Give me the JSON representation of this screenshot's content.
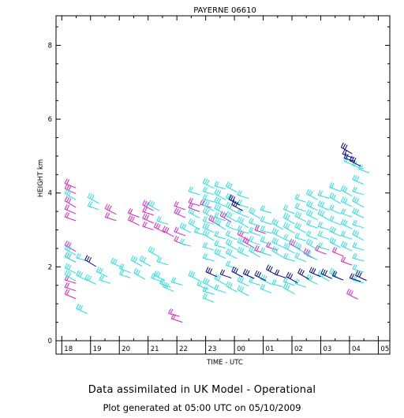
{
  "chart_data": {
    "type": "scatter",
    "title": "PAYERNE 06610",
    "xlabel": "TIME - UTC",
    "ylabel": "HEIGHT km",
    "x_tick_labels": [
      "18",
      "19",
      "20",
      "21",
      "22",
      "23",
      "00",
      "01",
      "02",
      "03",
      "04",
      "05"
    ],
    "y_ticks": [
      0,
      2,
      4,
      6,
      8
    ],
    "ylim": [
      0,
      8.8
    ],
    "xlim": [
      17.8,
      29.4
    ],
    "grid": false,
    "colors": {
      "magenta": "#e020c0",
      "cyan": "#20e0e0",
      "navy": "#000080"
    },
    "series": [
      {
        "color": "magenta",
        "points": [
          [
            18.3,
            4.2
          ],
          [
            18.3,
            4.05
          ],
          [
            18.3,
            3.7
          ],
          [
            18.3,
            3.5
          ],
          [
            18.3,
            3.3
          ],
          [
            18.3,
            2.5
          ],
          [
            18.3,
            2.2
          ],
          [
            18.3,
            1.6
          ],
          [
            18.3,
            1.4
          ],
          [
            18.3,
            1.2
          ],
          [
            19.7,
            3.5
          ],
          [
            19.7,
            3.3
          ],
          [
            20.5,
            3.4
          ],
          [
            20.5,
            3.2
          ],
          [
            21.0,
            3.6
          ],
          [
            21.0,
            3.45
          ],
          [
            21.0,
            3.25
          ],
          [
            21.0,
            3.05
          ],
          [
            21.4,
            3.0
          ],
          [
            21.7,
            2.9
          ],
          [
            22.1,
            3.6
          ],
          [
            22.1,
            3.4
          ],
          [
            22.1,
            2.9
          ],
          [
            22.1,
            2.65
          ],
          [
            21.9,
            0.7
          ],
          [
            22.0,
            0.55
          ],
          [
            22.6,
            3.7
          ],
          [
            22.6,
            3.55
          ],
          [
            23.0,
            3.65
          ],
          [
            23.3,
            3.2
          ],
          [
            23.7,
            3.3
          ],
          [
            24.3,
            2.8
          ],
          [
            24.9,
            2.95
          ],
          [
            24.5,
            2.6
          ],
          [
            24.9,
            2.4
          ],
          [
            25.3,
            2.5
          ],
          [
            26.1,
            2.55
          ],
          [
            26.6,
            2.3
          ],
          [
            27.0,
            2.4
          ],
          [
            27.6,
            2.35
          ],
          [
            27.9,
            2.1
          ],
          [
            28.1,
            1.2
          ]
        ]
      },
      {
        "color": "cyan",
        "points": [
          [
            18.3,
            3.9
          ],
          [
            18.3,
            2.4
          ],
          [
            18.3,
            2.2
          ],
          [
            18.3,
            1.9
          ],
          [
            18.3,
            1.7
          ],
          [
            18.7,
            2.2
          ],
          [
            18.7,
            1.7
          ],
          [
            19.0,
            1.6
          ],
          [
            18.7,
            0.8
          ],
          [
            19.1,
            3.8
          ],
          [
            19.1,
            3.6
          ],
          [
            19.4,
            1.8
          ],
          [
            19.5,
            1.6
          ],
          [
            19.9,
            2.05
          ],
          [
            20.2,
            1.9
          ],
          [
            20.2,
            1.75
          ],
          [
            20.6,
            2.1
          ],
          [
            20.9,
            2.1
          ],
          [
            20.7,
            1.75
          ],
          [
            21.2,
            3.6
          ],
          [
            21.5,
            3.2
          ],
          [
            21.2,
            2.35
          ],
          [
            21.5,
            2.1
          ],
          [
            21.4,
            1.7
          ],
          [
            21.6,
            1.5
          ],
          [
            21.3,
            1.65
          ],
          [
            21.7,
            1.4
          ],
          [
            22.0,
            1.55
          ],
          [
            22.3,
            3.0
          ],
          [
            22.3,
            2.6
          ],
          [
            22.6,
            4.0
          ],
          [
            22.6,
            3.4
          ],
          [
            22.6,
            3.1
          ],
          [
            22.8,
            2.9
          ],
          [
            22.6,
            1.7
          ],
          [
            22.9,
            1.45
          ],
          [
            23.1,
            4.2
          ],
          [
            23.1,
            4.0
          ],
          [
            23.1,
            3.8
          ],
          [
            23.1,
            3.6
          ],
          [
            23.1,
            3.4
          ],
          [
            23.1,
            3.2
          ],
          [
            23.1,
            3.0
          ],
          [
            23.1,
            2.8
          ],
          [
            23.1,
            2.5
          ],
          [
            23.1,
            2.2
          ],
          [
            23.1,
            1.5
          ],
          [
            23.1,
            1.3
          ],
          [
            23.1,
            1.1
          ],
          [
            23.5,
            4.15
          ],
          [
            23.5,
            3.9
          ],
          [
            23.5,
            3.7
          ],
          [
            23.5,
            3.5
          ],
          [
            23.5,
            3.3
          ],
          [
            23.5,
            3.1
          ],
          [
            23.5,
            2.8
          ],
          [
            23.5,
            2.55
          ],
          [
            23.5,
            2.3
          ],
          [
            23.5,
            1.6
          ],
          [
            23.5,
            1.35
          ],
          [
            23.9,
            4.1
          ],
          [
            23.9,
            3.8
          ],
          [
            23.9,
            3.55
          ],
          [
            23.9,
            3.3
          ],
          [
            23.9,
            3.05
          ],
          [
            23.9,
            2.8
          ],
          [
            23.9,
            2.55
          ],
          [
            23.9,
            2.3
          ],
          [
            23.9,
            2.0
          ],
          [
            23.9,
            1.4
          ],
          [
            24.3,
            3.9
          ],
          [
            24.3,
            3.65
          ],
          [
            24.3,
            3.4
          ],
          [
            24.3,
            3.15
          ],
          [
            24.3,
            2.95
          ],
          [
            24.3,
            2.6
          ],
          [
            24.3,
            2.35
          ],
          [
            24.3,
            1.55
          ],
          [
            24.3,
            1.3
          ],
          [
            24.7,
            3.4
          ],
          [
            24.7,
            3.15
          ],
          [
            24.7,
            2.9
          ],
          [
            24.7,
            2.65
          ],
          [
            24.7,
            2.35
          ],
          [
            24.7,
            1.55
          ],
          [
            25.1,
            3.5
          ],
          [
            25.1,
            3.2
          ],
          [
            25.1,
            2.95
          ],
          [
            25.1,
            2.65
          ],
          [
            25.1,
            2.35
          ],
          [
            25.1,
            1.6
          ],
          [
            25.1,
            1.35
          ],
          [
            25.5,
            3.1
          ],
          [
            25.5,
            2.85
          ],
          [
            25.5,
            2.6
          ],
          [
            25.5,
            2.35
          ],
          [
            25.5,
            1.5
          ],
          [
            25.9,
            3.5
          ],
          [
            25.9,
            3.25
          ],
          [
            25.9,
            3.0
          ],
          [
            25.9,
            2.7
          ],
          [
            25.9,
            2.45
          ],
          [
            25.9,
            2.2
          ],
          [
            25.9,
            1.55
          ],
          [
            25.9,
            1.35
          ],
          [
            26.3,
            3.8
          ],
          [
            26.3,
            3.55
          ],
          [
            26.3,
            3.3
          ],
          [
            26.3,
            3.0
          ],
          [
            26.3,
            2.75
          ],
          [
            26.3,
            2.45
          ],
          [
            26.3,
            2.2
          ],
          [
            26.3,
            1.5
          ],
          [
            26.7,
            3.9
          ],
          [
            26.7,
            3.6
          ],
          [
            26.7,
            3.35
          ],
          [
            26.7,
            3.1
          ],
          [
            26.7,
            2.8
          ],
          [
            26.7,
            2.55
          ],
          [
            26.7,
            2.25
          ],
          [
            26.7,
            1.6
          ],
          [
            27.1,
            3.9
          ],
          [
            27.1,
            3.6
          ],
          [
            27.1,
            3.35
          ],
          [
            27.1,
            3.05
          ],
          [
            27.1,
            2.8
          ],
          [
            27.1,
            2.5
          ],
          [
            27.1,
            1.7
          ],
          [
            27.5,
            4.1
          ],
          [
            27.5,
            3.8
          ],
          [
            27.5,
            3.5
          ],
          [
            27.5,
            3.2
          ],
          [
            27.5,
            2.9
          ],
          [
            27.5,
            2.6
          ],
          [
            27.5,
            1.75
          ],
          [
            27.9,
            4.0
          ],
          [
            27.9,
            3.7
          ],
          [
            27.9,
            3.4
          ],
          [
            27.9,
            3.1
          ],
          [
            27.9,
            2.8
          ],
          [
            27.9,
            2.5
          ],
          [
            28.0,
            4.8
          ],
          [
            28.3,
            4.3
          ],
          [
            28.3,
            4.0
          ],
          [
            28.3,
            3.7
          ],
          [
            28.3,
            3.4
          ],
          [
            28.3,
            3.1
          ],
          [
            28.3,
            2.8
          ],
          [
            28.3,
            2.5
          ],
          [
            28.3,
            2.2
          ],
          [
            28.3,
            1.9
          ],
          [
            28.3,
            1.6
          ],
          [
            28.3,
            4.7
          ],
          [
            28.5,
            4.6
          ]
        ]
      },
      {
        "color": "navy",
        "points": [
          [
            19.0,
            2.1
          ],
          [
            23.2,
            1.8
          ],
          [
            23.7,
            1.75
          ],
          [
            24.1,
            1.8
          ],
          [
            24.5,
            1.75
          ],
          [
            24.9,
            1.7
          ],
          [
            25.3,
            1.85
          ],
          [
            25.6,
            1.75
          ],
          [
            26.0,
            1.65
          ],
          [
            26.4,
            1.75
          ],
          [
            26.8,
            1.8
          ],
          [
            27.2,
            1.75
          ],
          [
            27.6,
            1.7
          ],
          [
            28.2,
            1.65
          ],
          [
            28.4,
            1.7
          ],
          [
            24.0,
            3.75
          ],
          [
            24.1,
            3.6
          ],
          [
            27.9,
            5.15
          ],
          [
            27.95,
            5.0
          ],
          [
            28.0,
            4.9
          ],
          [
            28.2,
            4.8
          ]
        ]
      }
    ]
  },
  "footer": {
    "line1": "Data assimilated in UK Model - Operational",
    "line2": "Plot generated at 05:00 UTC on 05/10/2009"
  }
}
